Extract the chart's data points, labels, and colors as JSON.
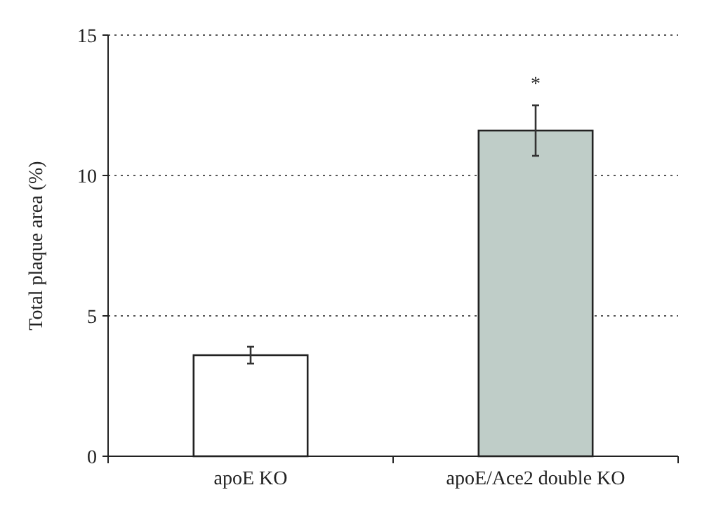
{
  "chart_data": {
    "type": "bar",
    "ylabel": "Total plaque area (%)",
    "categories": [
      "apoE KO",
      "apoE/Ace2 double KO"
    ],
    "values": [
      3.6,
      11.6
    ],
    "errors": [
      0.3,
      0.9
    ],
    "colors": [
      "#ffffff",
      "#bfcdc8"
    ],
    "ylim": [
      0,
      15
    ],
    "yticks": [
      0,
      5,
      10,
      15
    ],
    "grid": "y",
    "annotations": [
      "*"
    ]
  }
}
